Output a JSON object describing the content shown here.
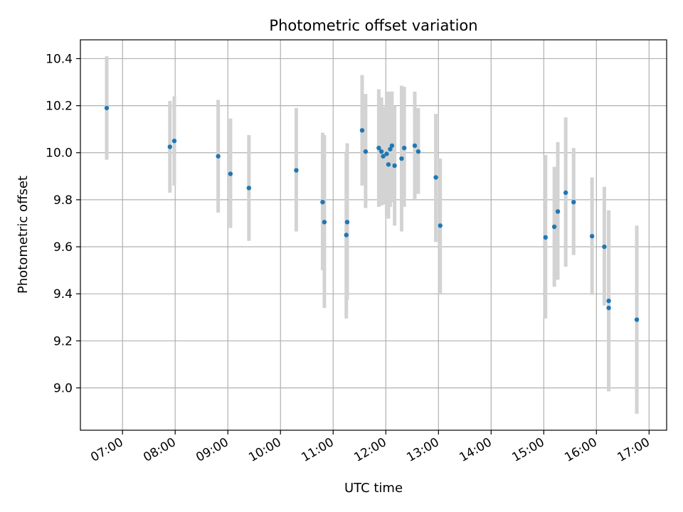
{
  "chart_data": {
    "type": "scatter",
    "title": "Photometric offset variation",
    "xlabel": "UTC time",
    "ylabel": "Photometric offset",
    "x_ticks": [
      "07:00",
      "08:00",
      "09:00",
      "10:00",
      "11:00",
      "12:00",
      "13:00",
      "14:00",
      "15:00",
      "16:00",
      "17:00"
    ],
    "y_ticks": [
      "9.0",
      "9.2",
      "9.4",
      "9.6",
      "9.8",
      "10.0",
      "10.2",
      "10.4"
    ],
    "xlim": [
      "06:12",
      "17:20"
    ],
    "ylim": [
      8.82,
      10.48
    ],
    "grid": true,
    "point_color": "#1f77b4",
    "errorbar_color": "#d3d3d3",
    "points": [
      {
        "time": "06:42",
        "y": 10.19,
        "ylow": 9.97,
        "yhigh": 10.41
      },
      {
        "time": "07:54",
        "y": 10.025,
        "ylow": 9.83,
        "yhigh": 10.22
      },
      {
        "time": "07:59",
        "y": 10.05,
        "ylow": 9.86,
        "yhigh": 10.24
      },
      {
        "time": "08:49",
        "y": 9.985,
        "ylow": 9.745,
        "yhigh": 10.225
      },
      {
        "time": "09:03",
        "y": 9.91,
        "ylow": 9.68,
        "yhigh": 10.145
      },
      {
        "time": "09:24",
        "y": 9.85,
        "ylow": 9.625,
        "yhigh": 10.075
      },
      {
        "time": "10:18",
        "y": 9.925,
        "ylow": 9.665,
        "yhigh": 10.19
      },
      {
        "time": "10:48",
        "y": 9.79,
        "ylow": 9.5,
        "yhigh": 10.085
      },
      {
        "time": "10:50",
        "y": 9.705,
        "ylow": 9.34,
        "yhigh": 10.075
      },
      {
        "time": "11:15",
        "y": 9.65,
        "ylow": 9.295,
        "yhigh": 10.005
      },
      {
        "time": "11:16",
        "y": 9.705,
        "ylow": 9.375,
        "yhigh": 10.04
      },
      {
        "time": "11:33",
        "y": 10.095,
        "ylow": 9.86,
        "yhigh": 10.33
      },
      {
        "time": "11:37",
        "y": 10.005,
        "ylow": 9.765,
        "yhigh": 10.25
      },
      {
        "time": "11:52",
        "y": 10.02,
        "ylow": 9.77,
        "yhigh": 10.27
      },
      {
        "time": "11:55",
        "y": 10.005,
        "ylow": 9.775,
        "yhigh": 10.235
      },
      {
        "time": "11:57",
        "y": 9.985,
        "ylow": 9.78,
        "yhigh": 10.195
      },
      {
        "time": "12:01",
        "y": 9.995,
        "ylow": 9.73,
        "yhigh": 10.26
      },
      {
        "time": "12:03",
        "y": 9.95,
        "ylow": 9.72,
        "yhigh": 10.18
      },
      {
        "time": "12:05",
        "y": 10.015,
        "ylow": 9.77,
        "yhigh": 10.26
      },
      {
        "time": "12:07",
        "y": 10.03,
        "ylow": 9.79,
        "yhigh": 10.26
      },
      {
        "time": "12:10",
        "y": 9.945,
        "ylow": 9.69,
        "yhigh": 10.2
      },
      {
        "time": "12:18",
        "y": 9.975,
        "ylow": 9.665,
        "yhigh": 10.285
      },
      {
        "time": "12:21",
        "y": 10.02,
        "ylow": 9.77,
        "yhigh": 10.28
      },
      {
        "time": "12:33",
        "y": 10.03,
        "ylow": 9.8,
        "yhigh": 10.26
      },
      {
        "time": "12:37",
        "y": 10.005,
        "ylow": 9.825,
        "yhigh": 10.19
      },
      {
        "time": "12:57",
        "y": 9.895,
        "ylow": 9.62,
        "yhigh": 10.165
      },
      {
        "time": "13:02",
        "y": 9.69,
        "ylow": 9.4,
        "yhigh": 9.975
      },
      {
        "time": "15:02",
        "y": 9.64,
        "ylow": 9.295,
        "yhigh": 9.99
      },
      {
        "time": "15:12",
        "y": 9.685,
        "ylow": 9.43,
        "yhigh": 9.94
      },
      {
        "time": "15:16",
        "y": 9.75,
        "ylow": 9.46,
        "yhigh": 10.045
      },
      {
        "time": "15:25",
        "y": 9.83,
        "ylow": 9.515,
        "yhigh": 10.15
      },
      {
        "time": "15:34",
        "y": 9.79,
        "ylow": 9.565,
        "yhigh": 10.02
      },
      {
        "time": "15:55",
        "y": 9.645,
        "ylow": 9.395,
        "yhigh": 9.895
      },
      {
        "time": "16:09",
        "y": 9.6,
        "ylow": 9.35,
        "yhigh": 9.855
      },
      {
        "time": "16:14",
        "y": 9.37,
        "ylow": 9.0,
        "yhigh": 9.74
      },
      {
        "time": "16:14",
        "y": 9.34,
        "ylow": 8.985,
        "yhigh": 9.755
      },
      {
        "time": "16:46",
        "y": 9.29,
        "ylow": 8.89,
        "yhigh": 9.69
      }
    ]
  }
}
